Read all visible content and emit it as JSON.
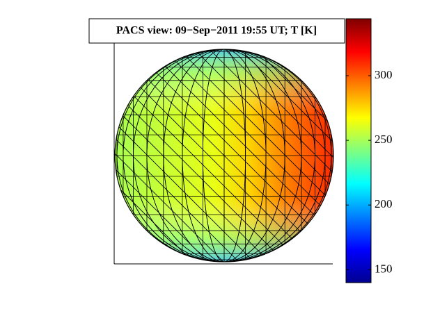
{
  "chart_data": {
    "type": "sphere",
    "title": "PACS view: 09−Sep−2011 19:55 UT; T [K]",
    "colormap": "jet",
    "clim": [
      140,
      344
    ],
    "cticks": [
      150,
      200,
      250,
      300
    ]
  }
}
